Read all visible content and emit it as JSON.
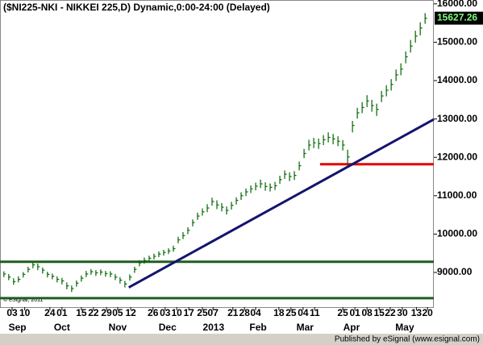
{
  "chart_data": {
    "type": "hlc",
    "title": "($NI225-NKI - NIKKEI 225,D) Dynamic,0:00-24:00 (Delayed)",
    "copyright": "© eSignal, 2011",
    "footer": "Published by eSignal (www.esignal.com)",
    "color": "#006400",
    "x": [
      0,
      1,
      2,
      3,
      4,
      5,
      6,
      7,
      8,
      9,
      10,
      11,
      12,
      13,
      14,
      15,
      16,
      17,
      18,
      19,
      20,
      21,
      22,
      23,
      24,
      25,
      26,
      27,
      28,
      29,
      30,
      31,
      32,
      33,
      34,
      35,
      36,
      37,
      38,
      39,
      40,
      41,
      42,
      43,
      44,
      45,
      46,
      47,
      48,
      49,
      50,
      51,
      52,
      53,
      54,
      55,
      56,
      57,
      58,
      59,
      60,
      61,
      62,
      63,
      64,
      65,
      66,
      67,
      68,
      69,
      70,
      71,
      72,
      73,
      74,
      75,
      76,
      77,
      78,
      79,
      80,
      81,
      82,
      83,
      84,
      85,
      86,
      87
    ],
    "high": [
      9030,
      8960,
      8850,
      8900,
      9010,
      9150,
      9260,
      9230,
      9130,
      9020,
      8970,
      8900,
      8860,
      8740,
      8660,
      8790,
      8920,
      9040,
      9090,
      9060,
      9080,
      9040,
      9030,
      8960,
      8880,
      8780,
      8950,
      9150,
      9320,
      9390,
      9440,
      9490,
      9550,
      9590,
      9630,
      9700,
      9930,
      10050,
      10180,
      10380,
      10560,
      10670,
      10780,
      10950,
      10880,
      10810,
      10720,
      10840,
      10960,
      11090,
      11190,
      11270,
      11340,
      11420,
      11350,
      11320,
      11360,
      11520,
      11660,
      11610,
      11640,
      11890,
      12220,
      12460,
      12510,
      12490,
      12580,
      12650,
      12610,
      12550,
      12450,
      12200,
      12950,
      13290,
      13440,
      13620,
      13500,
      13400,
      13730,
      13880,
      14040,
      14290,
      14450,
      14760,
      15060,
      15300,
      15520,
      15760
    ],
    "low": [
      8880,
      8800,
      8680,
      8740,
      8870,
      9000,
      9110,
      9060,
      8970,
      8870,
      8820,
      8740,
      8690,
      8560,
      8490,
      8630,
      8760,
      8880,
      8940,
      8910,
      8930,
      8890,
      8880,
      8800,
      8710,
      8610,
      8790,
      8990,
      9160,
      9230,
      9290,
      9340,
      9400,
      9440,
      9480,
      9540,
      9760,
      9870,
      10000,
      10200,
      10370,
      10480,
      10570,
      10740,
      10650,
      10590,
      10510,
      10640,
      10770,
      10890,
      10990,
      11070,
      11140,
      11200,
      11130,
      11110,
      11150,
      11310,
      11440,
      11380,
      11410,
      11660,
      11980,
      12180,
      12240,
      12220,
      12320,
      12390,
      12340,
      12290,
      12180,
      11820,
      12650,
      13010,
      13150,
      13310,
      13190,
      13080,
      13440,
      13590,
      13740,
      13990,
      14140,
      14450,
      14730,
      14990,
      15180,
      15480
    ],
    "close": [
      8960,
      8880,
      8760,
      8820,
      8950,
      9080,
      9200,
      9150,
      9060,
      8950,
      8900,
      8820,
      8780,
      8650,
      8580,
      8720,
      8850,
      8960,
      9020,
      8990,
      9010,
      8970,
      8960,
      8880,
      8800,
      8700,
      8880,
      9080,
      9250,
      9310,
      9370,
      9420,
      9480,
      9520,
      9560,
      9620,
      9850,
      9960,
      10100,
      10300,
      10470,
      10580,
      10680,
      10850,
      10760,
      10700,
      10620,
      10750,
      10880,
      11000,
      11100,
      11180,
      11250,
      11310,
      11240,
      11220,
      11260,
      11420,
      11560,
      11500,
      11530,
      11780,
      12100,
      12320,
      12380,
      12360,
      12460,
      12520,
      12480,
      12420,
      12320,
      12010,
      12830,
      13160,
      13300,
      13470,
      13350,
      13250,
      13600,
      13750,
      13900,
      14150,
      14300,
      14620,
      14900,
      15160,
      15370,
      15627.26
    ],
    "xlim": [
      -0.8,
      88.8
    ],
    "ylim": [
      8097,
      16101
    ],
    "yticks": [
      {
        "value": 9000,
        "label": "9000.00"
      },
      {
        "value": 10000,
        "label": "10000.00"
      },
      {
        "value": 11000,
        "label": "11000.00"
      },
      {
        "value": 12000,
        "label": "12000.00"
      },
      {
        "value": 13000,
        "label": "13000.00"
      },
      {
        "value": 14000,
        "label": "14000.00"
      },
      {
        "value": 15000,
        "label": "15000.00"
      },
      {
        "value": 16000,
        "label": "16000.00"
      }
    ],
    "xticks": [
      {
        "value": 1.7,
        "label": "03"
      },
      {
        "value": 4.3,
        "label": "10"
      },
      {
        "value": 9.5,
        "label": "24"
      },
      {
        "value": 12,
        "label": "01"
      },
      {
        "value": 16,
        "label": "15"
      },
      {
        "value": 18.5,
        "label": "22"
      },
      {
        "value": 21.2,
        "label": "29"
      },
      {
        "value": 23.5,
        "label": "05"
      },
      {
        "value": 26.2,
        "label": "12"
      },
      {
        "value": 30.8,
        "label": "26"
      },
      {
        "value": 33.3,
        "label": "03"
      },
      {
        "value": 35.7,
        "label": "10"
      },
      {
        "value": 38.2,
        "label": "17"
      },
      {
        "value": 41,
        "label": "25"
      },
      {
        "value": 43.2,
        "label": "07"
      },
      {
        "value": 47.3,
        "label": "21"
      },
      {
        "value": 49.7,
        "label": "28"
      },
      {
        "value": 52,
        "label": "04"
      },
      {
        "value": 56.8,
        "label": "18"
      },
      {
        "value": 59.3,
        "label": "25"
      },
      {
        "value": 61.8,
        "label": "04"
      },
      {
        "value": 64.2,
        "label": "11"
      },
      {
        "value": 70,
        "label": "25"
      },
      {
        "value": 72.5,
        "label": "01"
      },
      {
        "value": 75,
        "label": "08"
      },
      {
        "value": 77.5,
        "label": "15"
      },
      {
        "value": 79.8,
        "label": "22"
      },
      {
        "value": 82.3,
        "label": "30"
      },
      {
        "value": 85.2,
        "label": "13"
      },
      {
        "value": 87.5,
        "label": "20"
      }
    ],
    "months": [
      {
        "value": 2.8,
        "label": "Sep"
      },
      {
        "value": 12,
        "label": "Oct"
      },
      {
        "value": 23.5,
        "label": "Nov"
      },
      {
        "value": 33.8,
        "label": "Dec"
      },
      {
        "value": 43.3,
        "label": "2013"
      },
      {
        "value": 52.5,
        "label": "Feb"
      },
      {
        "value": 62.2,
        "label": "Mar"
      },
      {
        "value": 71.8,
        "label": "Apr"
      },
      {
        "value": 82.8,
        "label": "May"
      }
    ],
    "levels": [
      {
        "color": "#1e5e1e",
        "y": 9280
      },
      {
        "color": "#1e5e1e",
        "y": 8330
      },
      {
        "color": "#e00000",
        "y": 11820,
        "x": [
          65.3,
          88.8
        ]
      }
    ],
    "trendline": {
      "color": "#14146e",
      "x": [
        25.8,
        88.8
      ],
      "y": [
        8610,
        12990
      ]
    }
  }
}
